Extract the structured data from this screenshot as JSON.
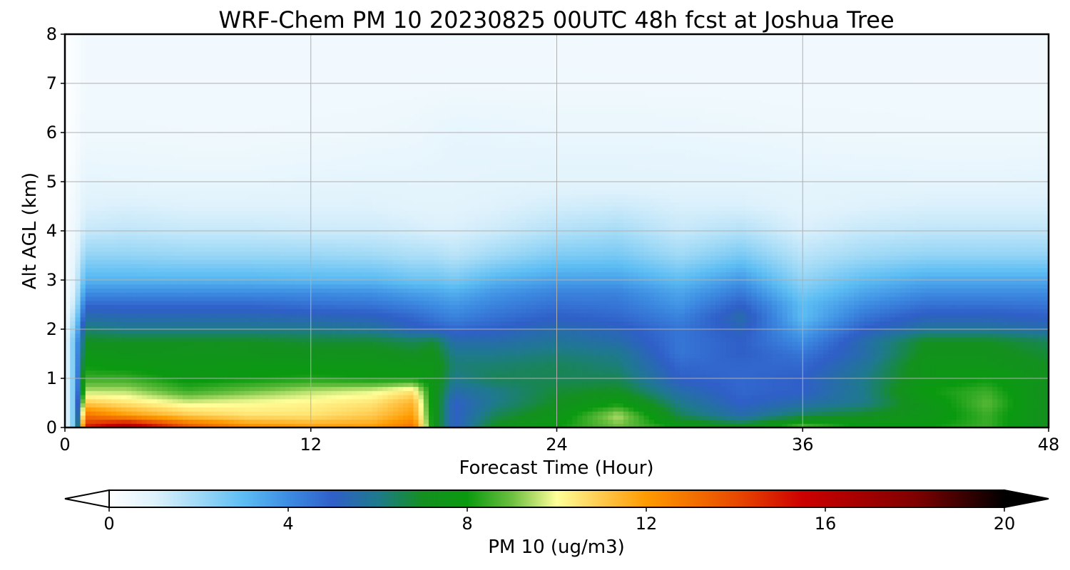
{
  "chart_data": {
    "type": "heatmap",
    "title": "WRF-Chem PM 10  20230825 00UTC 48h fcst at Joshua Tree",
    "xlabel": "Forecast Time (Hour)",
    "ylabel": "Alt AGL (km)",
    "xlim": [
      0,
      48
    ],
    "ylim": [
      0,
      8
    ],
    "x_ticks": [
      "0",
      "12",
      "24",
      "36",
      "48"
    ],
    "y_ticks": [
      "0",
      "1",
      "2",
      "3",
      "4",
      "5",
      "6",
      "7",
      "8"
    ],
    "grid": true,
    "x_hours": [
      0,
      0.5,
      1,
      3,
      6,
      9,
      12,
      15,
      17,
      18,
      19,
      21,
      24,
      27,
      30,
      33,
      36,
      39,
      42,
      45,
      48
    ],
    "z_levels_km": [
      0,
      0.25,
      0.5,
      0.75,
      1,
      1.25,
      1.5,
      1.75,
      2,
      2.25,
      2.5,
      2.75,
      3,
      3.5,
      4,
      4.5,
      5,
      5.5,
      6,
      7,
      8
    ],
    "values": [
      [
        0.5,
        3,
        15,
        17,
        14,
        12.5,
        12,
        12,
        13,
        7.5,
        5,
        7.2,
        8,
        9,
        8,
        7.2,
        9,
        8,
        8,
        8.5,
        7
      ],
      [
        0.5,
        3,
        13,
        12,
        11,
        10.5,
        10.5,
        11,
        12,
        7.5,
        5,
        6.5,
        7.5,
        9.5,
        6.5,
        5.5,
        6.5,
        7,
        7.5,
        8.5,
        7
      ],
      [
        0.5,
        3,
        11,
        10.5,
        9.8,
        10,
        10.2,
        10.5,
        11.5,
        7.5,
        5,
        6,
        7,
        8,
        6,
        5,
        5.5,
        6,
        7.5,
        8.8,
        7
      ],
      [
        0.5,
        3,
        9.5,
        9.5,
        8.5,
        9,
        9.5,
        9.8,
        10.5,
        7.5,
        5.5,
        6,
        6.8,
        7,
        5.5,
        4.8,
        5,
        6,
        8,
        8.5,
        7
      ],
      [
        0.5,
        3,
        8.5,
        8.5,
        7.8,
        8,
        8.2,
        8,
        8,
        7.5,
        6,
        6.5,
        6.5,
        6.5,
        5,
        4.8,
        5,
        6,
        7.5,
        8,
        7.2
      ],
      [
        0.5,
        3,
        8,
        7.8,
        7.6,
        7.7,
        7.7,
        7.6,
        7.5,
        7.5,
        6.2,
        6.3,
        6.5,
        6.2,
        4.8,
        4.8,
        4.8,
        5.8,
        7.5,
        7.5,
        7
      ],
      [
        0.5,
        3,
        7.5,
        7.4,
        7.3,
        7.3,
        7.2,
        7.2,
        7,
        7.2,
        6,
        6,
        6.2,
        6,
        4.5,
        5,
        4.5,
        5.5,
        7.2,
        7.2,
        6.8
      ],
      [
        0.5,
        3,
        7,
        7,
        7,
        7,
        6.8,
        6.8,
        6.5,
        6.8,
        5.5,
        5.5,
        5.8,
        5.5,
        4.5,
        5,
        4,
        5.5,
        7,
        7,
        6.5
      ],
      [
        0.5,
        2.5,
        6.3,
        6,
        6,
        6,
        6,
        5.8,
        5.2,
        5,
        4.8,
        5,
        5.5,
        5.2,
        4.5,
        5.2,
        3.5,
        5,
        5.8,
        5.8,
        5.5
      ],
      [
        0.4,
        2,
        5.5,
        5.4,
        5.4,
        5.4,
        5.3,
        5.2,
        4.8,
        4.5,
        4.2,
        4.6,
        5,
        4.8,
        4.2,
        5.5,
        3,
        4.5,
        5.2,
        5.2,
        5
      ],
      [
        0.3,
        1.5,
        4.8,
        4.8,
        4.8,
        4.8,
        4.6,
        4.5,
        4.2,
        4,
        3.8,
        4.2,
        4.6,
        4.5,
        3.8,
        5,
        3,
        4,
        4.6,
        4.6,
        4.5
      ],
      [
        0.3,
        1.2,
        4,
        4,
        4,
        4,
        4,
        3.9,
        3.6,
        3.5,
        3.3,
        3.8,
        4.2,
        4.2,
        3.5,
        4.4,
        2.6,
        3.5,
        4,
        4,
        4
      ],
      [
        0.2,
        1,
        3.2,
        3.2,
        3.2,
        3.2,
        3.1,
        3.1,
        2.8,
        2.8,
        2.6,
        3.2,
        3.6,
        3.6,
        3,
        3.8,
        2.2,
        3,
        3.4,
        3.4,
        3.4
      ],
      [
        0.2,
        0.8,
        2.2,
        2.2,
        2.1,
        2.1,
        2.1,
        2,
        1.8,
        1.8,
        1.6,
        2,
        2.5,
        2.6,
        2,
        2.6,
        1.6,
        2,
        2.2,
        2.2,
        2.2
      ],
      [
        0.15,
        0.6,
        1.4,
        1.5,
        1.4,
        1.4,
        1.3,
        1.3,
        1.2,
        1.1,
        1.1,
        1.3,
        1.7,
        1.9,
        1.4,
        1.7,
        1.1,
        1.4,
        1.5,
        1.5,
        1.5
      ],
      [
        0.1,
        0.5,
        1,
        1.1,
        1,
        1,
        1,
        1,
        0.9,
        0.9,
        0.9,
        1,
        1.2,
        1.3,
        1.1,
        1.1,
        0.9,
        1,
        1.1,
        1.1,
        1.1
      ],
      [
        0.1,
        0.4,
        0.8,
        0.75,
        0.72,
        0.72,
        0.8,
        0.82,
        0.82,
        0.82,
        0.82,
        0.85,
        0.88,
        0.88,
        0.86,
        0.86,
        0.82,
        0.82,
        0.8,
        0.8,
        0.82
      ],
      [
        0.05,
        0.3,
        0.62,
        0.6,
        0.58,
        0.58,
        0.62,
        0.68,
        0.7,
        0.75,
        0.8,
        0.8,
        0.8,
        0.8,
        0.78,
        0.74,
        0.68,
        0.66,
        0.64,
        0.64,
        0.64
      ],
      [
        0.05,
        0.25,
        0.52,
        0.52,
        0.5,
        0.5,
        0.52,
        0.55,
        0.6,
        0.68,
        0.75,
        0.72,
        0.66,
        0.66,
        0.64,
        0.6,
        0.55,
        0.54,
        0.52,
        0.52,
        0.52
      ],
      [
        0.05,
        0.2,
        0.45,
        0.45,
        0.45,
        0.45,
        0.45,
        0.45,
        0.46,
        0.46,
        0.47,
        0.47,
        0.47,
        0.46,
        0.46,
        0.45,
        0.45,
        0.45,
        0.45,
        0.45,
        0.45
      ],
      [
        0.05,
        0.2,
        0.42,
        0.42,
        0.42,
        0.42,
        0.42,
        0.42,
        0.42,
        0.42,
        0.42,
        0.42,
        0.42,
        0.42,
        0.42,
        0.42,
        0.42,
        0.42,
        0.42,
        0.42,
        0.42
      ]
    ],
    "colorbar": {
      "label": "PM 10  (ug/m3)",
      "range": [
        0,
        20
      ],
      "ticks": [
        "0",
        "4",
        "8",
        "12",
        "16",
        "20"
      ],
      "extend": "both",
      "stops": [
        {
          "v": 0,
          "c": "#ffffff"
        },
        {
          "v": 1,
          "c": "#dff2fc"
        },
        {
          "v": 2,
          "c": "#9fd9f6"
        },
        {
          "v": 3,
          "c": "#5cbdf3"
        },
        {
          "v": 4,
          "c": "#3d8ce2"
        },
        {
          "v": 5,
          "c": "#2f5fc8"
        },
        {
          "v": 6,
          "c": "#1e7a8c"
        },
        {
          "v": 7,
          "c": "#149020"
        },
        {
          "v": 8,
          "c": "#0a9a10"
        },
        {
          "v": 9,
          "c": "#6cbf40"
        },
        {
          "v": 10,
          "c": "#ffff99"
        },
        {
          "v": 11,
          "c": "#ffc94d"
        },
        {
          "v": 12,
          "c": "#ff9a00"
        },
        {
          "v": 14,
          "c": "#e84a00"
        },
        {
          "v": 15.5,
          "c": "#cc0000"
        },
        {
          "v": 18,
          "c": "#800000"
        },
        {
          "v": 20,
          "c": "#000000"
        }
      ]
    }
  }
}
